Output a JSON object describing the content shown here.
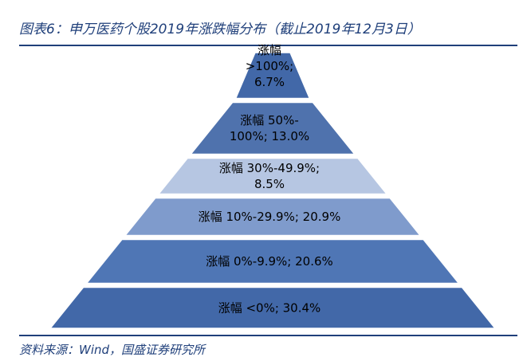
{
  "figure": {
    "title": "图表6：申万医药个股2019年涨跌幅分布（截止2019年12月3日）",
    "source": "资料来源：Wind，国盛证券研究所"
  },
  "colors": {
    "accent": "#1f3f7a",
    "tiers": [
      "#4268a8",
      "#4f72ad",
      "#b6c6e2",
      "#7f9bcc",
      "#4f76b5",
      "#4268a8"
    ]
  },
  "chart_data": {
    "type": "pyramid",
    "segments": [
      {
        "range": ">100%",
        "percent": 6.7,
        "lines": [
          "涨幅",
          ">100%;",
          "6.7%"
        ]
      },
      {
        "range": "50%-100%",
        "percent": 13.0,
        "lines": [
          "涨幅 50%-",
          "100%;  13.0%"
        ]
      },
      {
        "range": "30%-49.9%",
        "percent": 8.5,
        "lines": [
          "涨幅 30%-49.9%;",
          "8.5%"
        ]
      },
      {
        "range": "10%-29.9%",
        "percent": 20.9,
        "lines": [
          "涨幅 10%-29.9%;  20.9%"
        ]
      },
      {
        "range": "0%-9.9%",
        "percent": 20.6,
        "lines": [
          "涨幅 0%-9.9%;  20.6%"
        ]
      },
      {
        "range": "<0%",
        "percent": 30.4,
        "lines": [
          "涨幅 <0%;   30.4%"
        ]
      }
    ]
  }
}
